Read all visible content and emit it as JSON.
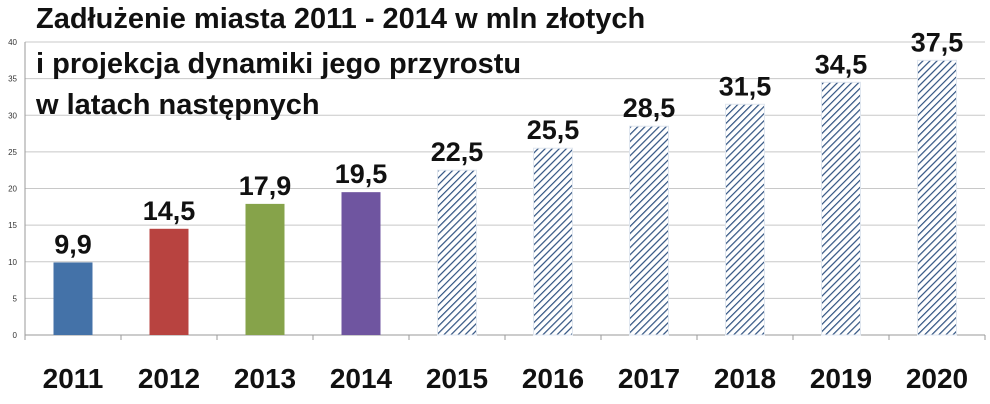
{
  "chart_data": {
    "type": "bar",
    "title_lines": [
      "Zadłużenie miasta 2011 - 2014 w mln złotych",
      "i projekcja dynamiki  jego przyrostu",
      "w latach następnych"
    ],
    "categories": [
      "2011",
      "2012",
      "2013",
      "2014",
      "2015",
      "2016",
      "2017",
      "2018",
      "2019",
      "2020"
    ],
    "values": [
      9.9,
      14.5,
      17.9,
      19.5,
      22.5,
      25.5,
      28.5,
      31.5,
      34.5,
      37.5
    ],
    "value_labels": [
      "9,9",
      "14,5",
      "17,9",
      "19,5",
      "22,5",
      "25,5",
      "28,5",
      "31,5",
      "34,5",
      "37,5"
    ],
    "bar_styles": [
      "solid",
      "solid",
      "solid",
      "solid",
      "hatched",
      "hatched",
      "hatched",
      "hatched",
      "hatched",
      "hatched"
    ],
    "colors": [
      "#4472a8",
      "#b84340",
      "#86a34a",
      "#6f55a0",
      "#2e5180",
      "#2e5180",
      "#2e5180",
      "#2e5180",
      "#2e5180",
      "#2e5180"
    ],
    "ylim": [
      0,
      40
    ],
    "yticks": [
      "0",
      "5",
      "10",
      "15",
      "20",
      "25",
      "30",
      "35",
      "40"
    ],
    "grid": true,
    "xlabel": "",
    "ylabel": ""
  }
}
